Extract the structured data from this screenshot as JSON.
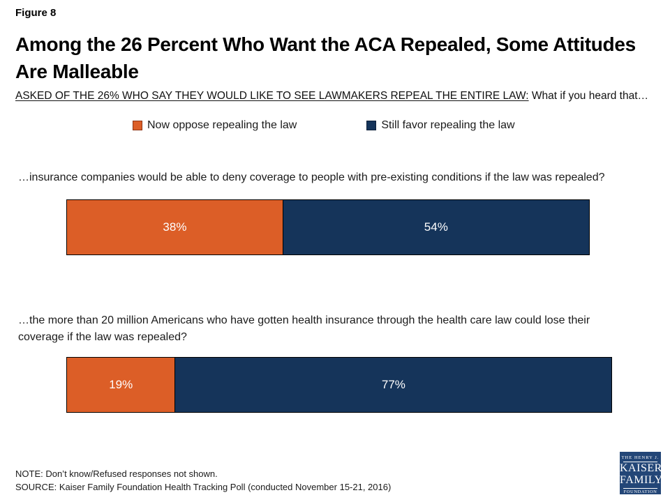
{
  "slide": {
    "figure_label": "Figure 8",
    "title": "Among the 26 Percent Who Want the ACA Repealed, Some Attitudes Are Malleable",
    "subtitle_underlined": "ASKED OF THE 26% WHO SAY THEY WOULD LIKE TO SEE LAWMAKERS REPEAL THE ENTIRE LAW:",
    "subtitle_rest": " What if you heard that…"
  },
  "chart_data": {
    "type": "bar",
    "stacked": true,
    "orientation": "horizontal",
    "x_max": 100,
    "grid": false,
    "legend_position": "top",
    "legend": [
      {
        "label": "Now oppose repealing the law",
        "color": "#DC5E27",
        "border": "#8E3413"
      },
      {
        "label": "Still favor repealing the law",
        "color": "#15345A",
        "border": "#0B1F38"
      }
    ],
    "rows": [
      {
        "question": "…insurance companies would be able to deny coverage to people with pre-existing conditions if the law was repealed?",
        "oppose": 38,
        "favor": 54,
        "oppose_label": "38%",
        "favor_label": "54%"
      },
      {
        "question": "…the more than 20 million Americans who have gotten health insurance through the health care law could lose their coverage if the law was repealed?",
        "oppose": 19,
        "favor": 77,
        "oppose_label": "19%",
        "favor_label": "77%"
      }
    ]
  },
  "footer": {
    "note": "NOTE: Don’t know/Refused responses not shown.",
    "source": "SOURCE: Kaiser Family Foundation Health Tracking Poll (conducted November 15-21, 2016)"
  },
  "logo": {
    "line1": "THE HENRY J.",
    "line2": "KAISER",
    "line3": "FAMILY",
    "line4": "FOUNDATION"
  }
}
